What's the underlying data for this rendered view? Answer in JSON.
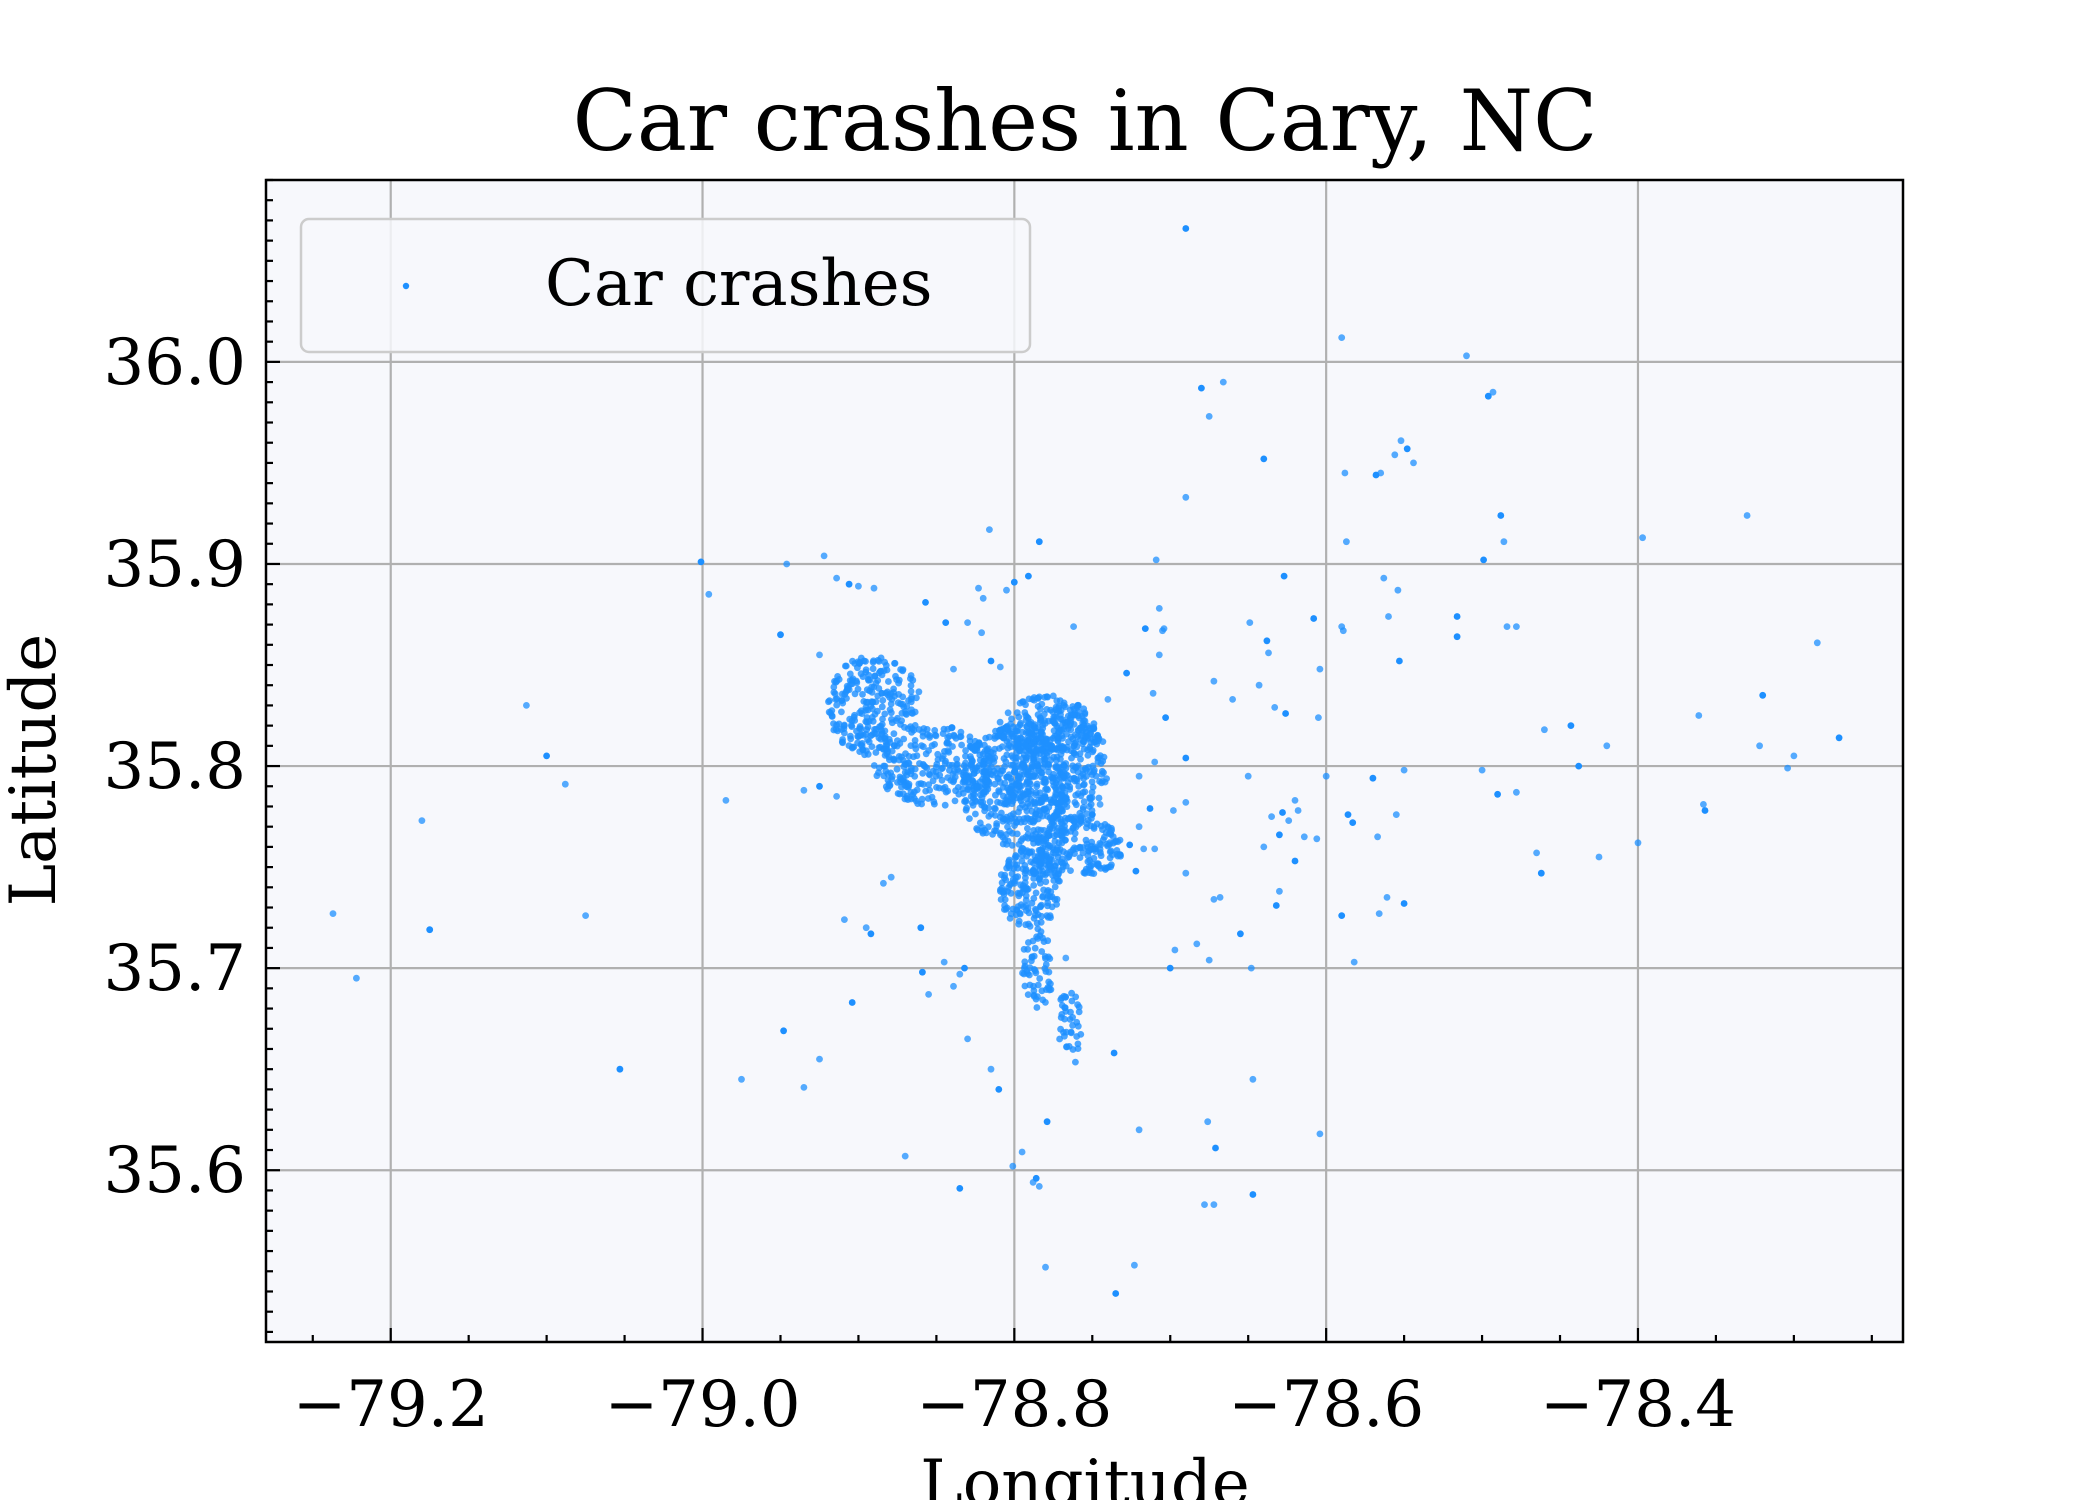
{
  "chart_data": {
    "type": "scatter",
    "title": "Car crashes in Cary, NC",
    "xlabel": "Longitude",
    "ylabel": "Latitude",
    "xlim": [
      -79.28,
      -78.23
    ],
    "ylim": [
      35.515,
      36.09
    ],
    "xticks": [
      -79.2,
      -79.0,
      -78.8,
      -78.6,
      -78.4
    ],
    "xtick_labels": [
      "−79.2",
      "−79.0",
      "−78.8",
      "−78.6",
      "−78.4"
    ],
    "yticks": [
      35.6,
      35.7,
      35.8,
      35.9,
      36.0
    ],
    "ytick_labels": [
      "35.6",
      "35.7",
      "35.8",
      "35.9",
      "36.0"
    ],
    "grid": true,
    "legend": "upper-left",
    "plot_background": "#f7f8fc",
    "series": [
      {
        "name": "Car crashes",
        "color": "#1e90ff",
        "points": [
          [
            -78.69,
            36.066
          ],
          [
            -78.59,
            36.012
          ],
          [
            -78.51,
            36.003
          ],
          [
            -78.68,
            35.987
          ],
          [
            -78.666,
            35.99
          ],
          [
            -78.493,
            35.985
          ],
          [
            -78.496,
            35.983
          ],
          [
            -78.675,
            35.973
          ],
          [
            -78.552,
            35.961
          ],
          [
            -78.548,
            35.957
          ],
          [
            -78.556,
            35.954
          ],
          [
            -78.544,
            35.95
          ],
          [
            -78.64,
            35.952
          ],
          [
            -78.588,
            35.945
          ],
          [
            -78.565,
            35.945
          ],
          [
            -78.568,
            35.944
          ],
          [
            -78.69,
            35.933
          ],
          [
            -78.33,
            35.924
          ],
          [
            -78.488,
            35.924
          ],
          [
            -78.397,
            35.913
          ],
          [
            -78.816,
            35.917
          ],
          [
            -78.784,
            35.911
          ],
          [
            -78.587,
            35.911
          ],
          [
            -78.486,
            35.911
          ],
          [
            -78.499,
            35.902
          ],
          [
            -78.709,
            35.902
          ],
          [
            -78.922,
            35.904
          ],
          [
            -78.8,
            35.891
          ],
          [
            -78.805,
            35.887
          ],
          [
            -78.946,
            35.9
          ],
          [
            -79.001,
            35.901
          ],
          [
            -78.996,
            35.885
          ],
          [
            -78.914,
            35.893
          ],
          [
            -78.906,
            35.89
          ],
          [
            -78.9,
            35.889
          ],
          [
            -78.89,
            35.888
          ],
          [
            -78.857,
            35.881
          ],
          [
            -78.823,
            35.888
          ],
          [
            -78.82,
            35.883
          ],
          [
            -78.791,
            35.894
          ],
          [
            -78.762,
            35.869
          ],
          [
            -78.707,
            35.878
          ],
          [
            -78.716,
            35.868
          ],
          [
            -78.705,
            35.867
          ],
          [
            -78.704,
            35.868
          ],
          [
            -78.627,
            35.894
          ],
          [
            -78.563,
            35.893
          ],
          [
            -78.554,
            35.887
          ],
          [
            -78.516,
            35.874
          ],
          [
            -78.484,
            35.869
          ],
          [
            -78.478,
            35.869
          ],
          [
            -78.516,
            35.864
          ],
          [
            -78.56,
            35.874
          ],
          [
            -78.589,
            35.867
          ],
          [
            -78.608,
            35.873
          ],
          [
            -78.59,
            35.869
          ],
          [
            -78.649,
            35.871
          ],
          [
            -78.638,
            35.862
          ],
          [
            -78.637,
            35.856
          ],
          [
            -78.604,
            35.848
          ],
          [
            -78.553,
            35.852
          ],
          [
            -78.707,
            35.855
          ],
          [
            -78.672,
            35.842
          ],
          [
            -78.728,
            35.846
          ],
          [
            -78.711,
            35.836
          ],
          [
            -78.74,
            35.833
          ],
          [
            -78.703,
            35.824
          ],
          [
            -78.643,
            35.84
          ],
          [
            -78.633,
            35.829
          ],
          [
            -78.626,
            35.826
          ],
          [
            -78.605,
            35.824
          ],
          [
            -78.66,
            35.833
          ],
          [
            -78.844,
            35.871
          ],
          [
            -78.83,
            35.871
          ],
          [
            -78.821,
            35.866
          ],
          [
            -78.815,
            35.852
          ],
          [
            -78.809,
            35.849
          ],
          [
            -78.839,
            35.848
          ],
          [
            -78.95,
            35.865
          ],
          [
            -78.925,
            35.855
          ],
          [
            -78.285,
            35.861
          ],
          [
            -78.32,
            35.835
          ],
          [
            -78.361,
            35.825
          ],
          [
            -78.46,
            35.818
          ],
          [
            -78.443,
            35.82
          ],
          [
            -78.42,
            35.81
          ],
          [
            -78.322,
            35.81
          ],
          [
            -78.271,
            35.814
          ],
          [
            -78.3,
            35.805
          ],
          [
            -78.304,
            35.799
          ],
          [
            -78.438,
            35.8
          ],
          [
            -78.5,
            35.798
          ],
          [
            -78.55,
            35.798
          ],
          [
            -78.57,
            35.794
          ],
          [
            -78.6,
            35.795
          ],
          [
            -78.65,
            35.795
          ],
          [
            -78.69,
            35.804
          ],
          [
            -78.71,
            35.802
          ],
          [
            -78.72,
            35.795
          ],
          [
            -78.49,
            35.786
          ],
          [
            -78.478,
            35.787
          ],
          [
            -78.555,
            35.776
          ],
          [
            -78.586,
            35.776
          ],
          [
            -78.62,
            35.783
          ],
          [
            -78.618,
            35.778
          ],
          [
            -78.628,
            35.777
          ],
          [
            -78.624,
            35.773
          ],
          [
            -78.635,
            35.775
          ],
          [
            -78.63,
            35.766
          ],
          [
            -78.64,
            35.76
          ],
          [
            -78.614,
            35.765
          ],
          [
            -78.62,
            35.753
          ],
          [
            -78.606,
            35.764
          ],
          [
            -78.567,
            35.765
          ],
          [
            -78.583,
            35.772
          ],
          [
            -78.69,
            35.782
          ],
          [
            -78.698,
            35.778
          ],
          [
            -78.713,
            35.779
          ],
          [
            -78.745,
            35.781
          ],
          [
            -78.752,
            35.78
          ],
          [
            -78.75,
            35.776
          ],
          [
            -78.72,
            35.77
          ],
          [
            -78.74,
            35.77
          ],
          [
            -78.726,
            35.761
          ],
          [
            -78.717,
            35.759
          ],
          [
            -78.71,
            35.759
          ],
          [
            -78.722,
            35.748
          ],
          [
            -78.69,
            35.747
          ],
          [
            -78.63,
            35.738
          ],
          [
            -78.632,
            35.731
          ],
          [
            -78.668,
            35.735
          ],
          [
            -78.672,
            35.734
          ],
          [
            -78.59,
            35.726
          ],
          [
            -78.561,
            35.735
          ],
          [
            -78.566,
            35.727
          ],
          [
            -78.55,
            35.732
          ],
          [
            -78.4,
            35.762
          ],
          [
            -78.358,
            35.781
          ],
          [
            -78.357,
            35.778
          ],
          [
            -78.425,
            35.755
          ],
          [
            -78.465,
            35.757
          ],
          [
            -78.462,
            35.747
          ],
          [
            -78.582,
            35.703
          ],
          [
            -78.648,
            35.7
          ],
          [
            -78.655,
            35.717
          ],
          [
            -78.683,
            35.712
          ],
          [
            -78.697,
            35.709
          ],
          [
            -78.7,
            35.7
          ],
          [
            -78.675,
            35.704
          ],
          [
            -78.767,
            35.705
          ],
          [
            -78.736,
            35.658
          ],
          [
            -78.647,
            35.645
          ],
          [
            -78.676,
            35.624
          ],
          [
            -78.671,
            35.611
          ],
          [
            -78.604,
            35.618
          ],
          [
            -78.72,
            35.62
          ],
          [
            -78.779,
            35.624
          ],
          [
            -78.795,
            35.609
          ],
          [
            -78.801,
            35.602
          ],
          [
            -78.786,
            35.596
          ],
          [
            -78.788,
            35.594
          ],
          [
            -78.784,
            35.592
          ],
          [
            -78.835,
            35.591
          ],
          [
            -78.678,
            35.583
          ],
          [
            -78.672,
            35.583
          ],
          [
            -78.647,
            35.588
          ],
          [
            -78.78,
            35.552
          ],
          [
            -78.723,
            35.553
          ],
          [
            -78.735,
            35.539
          ],
          [
            -79.237,
            35.727
          ],
          [
            -79.222,
            35.695
          ],
          [
            -79.175,
            35.719
          ],
          [
            -79.18,
            35.773
          ],
          [
            -79.113,
            35.83
          ],
          [
            -79.1,
            35.805
          ],
          [
            -79.088,
            35.791
          ],
          [
            -79.075,
            35.726
          ],
          [
            -79.053,
            35.65
          ],
          [
            -78.975,
            35.645
          ],
          [
            -78.985,
            35.783
          ],
          [
            -78.948,
            35.669
          ],
          [
            -78.935,
            35.641
          ],
          [
            -78.925,
            35.655
          ],
          [
            -78.904,
            35.683
          ],
          [
            -78.909,
            35.724
          ],
          [
            -78.895,
            35.72
          ],
          [
            -78.892,
            35.717
          ],
          [
            -78.884,
            35.742
          ],
          [
            -78.879,
            35.745
          ],
          [
            -78.86,
            35.72
          ],
          [
            -78.845,
            35.703
          ],
          [
            -78.839,
            35.691
          ],
          [
            -78.832,
            35.7
          ],
          [
            -78.835,
            35.697
          ],
          [
            -78.855,
            35.687
          ],
          [
            -78.859,
            35.698
          ],
          [
            -78.83,
            35.665
          ],
          [
            -78.815,
            35.65
          ],
          [
            -78.81,
            35.64
          ],
          [
            -78.87,
            35.607
          ],
          [
            -78.914,
            35.785
          ],
          [
            -78.925,
            35.79
          ],
          [
            -78.935,
            35.788
          ]
        ]
      }
    ]
  }
}
